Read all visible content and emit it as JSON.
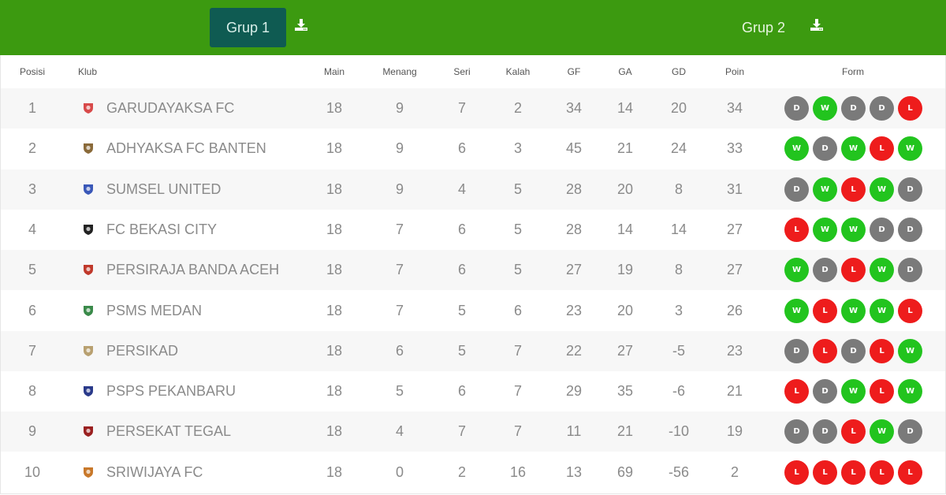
{
  "tabs": [
    {
      "label": "Grup 1",
      "active": true
    },
    {
      "label": "Grup 2",
      "active": false
    }
  ],
  "table": {
    "headers": {
      "pos": "Posisi",
      "club": "Klub",
      "main": "Main",
      "menang": "Menang",
      "seri": "Seri",
      "kalah": "Kalah",
      "gf": "GF",
      "ga": "GA",
      "gd": "GD",
      "poin": "Poin",
      "form": "Form"
    },
    "rows": [
      {
        "pos": "1",
        "club": "GARUDAYAKSA FC",
        "main": "18",
        "menang": "9",
        "seri": "7",
        "kalah": "2",
        "gf": "34",
        "ga": "14",
        "gd": "20",
        "poin": "34",
        "form": [
          "D",
          "W",
          "D",
          "D",
          "L"
        ],
        "logo_color": "#d84a4a"
      },
      {
        "pos": "2",
        "club": "ADHYAKSA FC BANTEN",
        "main": "18",
        "menang": "9",
        "seri": "6",
        "kalah": "3",
        "gf": "45",
        "ga": "21",
        "gd": "24",
        "poin": "33",
        "form": [
          "W",
          "D",
          "W",
          "L",
          "W"
        ],
        "logo_color": "#8a6a3a"
      },
      {
        "pos": "3",
        "club": "SUMSEL UNITED",
        "main": "18",
        "menang": "9",
        "seri": "4",
        "kalah": "5",
        "gf": "28",
        "ga": "20",
        "gd": "8",
        "poin": "31",
        "form": [
          "D",
          "W",
          "L",
          "W",
          "D"
        ],
        "logo_color": "#3a58b8"
      },
      {
        "pos": "4",
        "club": "FC BEKASI CITY",
        "main": "18",
        "menang": "7",
        "seri": "6",
        "kalah": "5",
        "gf": "28",
        "ga": "14",
        "gd": "14",
        "poin": "27",
        "form": [
          "L",
          "W",
          "W",
          "D",
          "D"
        ],
        "logo_color": "#222222"
      },
      {
        "pos": "5",
        "club": "PERSIRAJA BANDA ACEH",
        "main": "18",
        "menang": "7",
        "seri": "6",
        "kalah": "5",
        "gf": "27",
        "ga": "19",
        "gd": "8",
        "poin": "27",
        "form": [
          "W",
          "D",
          "L",
          "W",
          "D"
        ],
        "logo_color": "#c0392b"
      },
      {
        "pos": "6",
        "club": "PSMS MEDAN",
        "main": "18",
        "menang": "7",
        "seri": "5",
        "kalah": "6",
        "gf": "23",
        "ga": "20",
        "gd": "3",
        "poin": "26",
        "form": [
          "W",
          "L",
          "W",
          "W",
          "L"
        ],
        "logo_color": "#3a8a4a"
      },
      {
        "pos": "7",
        "club": "PERSIKAD",
        "main": "18",
        "menang": "6",
        "seri": "5",
        "kalah": "7",
        "gf": "22",
        "ga": "27",
        "gd": "-5",
        "poin": "23",
        "form": [
          "D",
          "L",
          "D",
          "L",
          "W"
        ],
        "logo_color": "#b8a070"
      },
      {
        "pos": "8",
        "club": "PSPS PEKANBARU",
        "main": "18",
        "menang": "5",
        "seri": "6",
        "kalah": "7",
        "gf": "29",
        "ga": "35",
        "gd": "-6",
        "poin": "21",
        "form": [
          "L",
          "D",
          "W",
          "L",
          "W"
        ],
        "logo_color": "#2a3a8a"
      },
      {
        "pos": "9",
        "club": "PERSEKAT TEGAL",
        "main": "18",
        "menang": "4",
        "seri": "7",
        "kalah": "7",
        "gf": "11",
        "ga": "21",
        "gd": "-10",
        "poin": "19",
        "form": [
          "D",
          "D",
          "L",
          "W",
          "D"
        ],
        "logo_color": "#9a2020"
      },
      {
        "pos": "10",
        "club": "SRIWIJAYA FC",
        "main": "18",
        "menang": "0",
        "seri": "2",
        "kalah": "16",
        "gf": "13",
        "ga": "69",
        "gd": "-56",
        "poin": "2",
        "form": [
          "L",
          "L",
          "L",
          "L",
          "L"
        ],
        "logo_color": "#c8782a"
      }
    ]
  },
  "form_colors": {
    "W": "#22c41e",
    "D": "#7a7a7a",
    "L": "#ee1c1c"
  },
  "icons": {
    "download": "download-icon"
  }
}
